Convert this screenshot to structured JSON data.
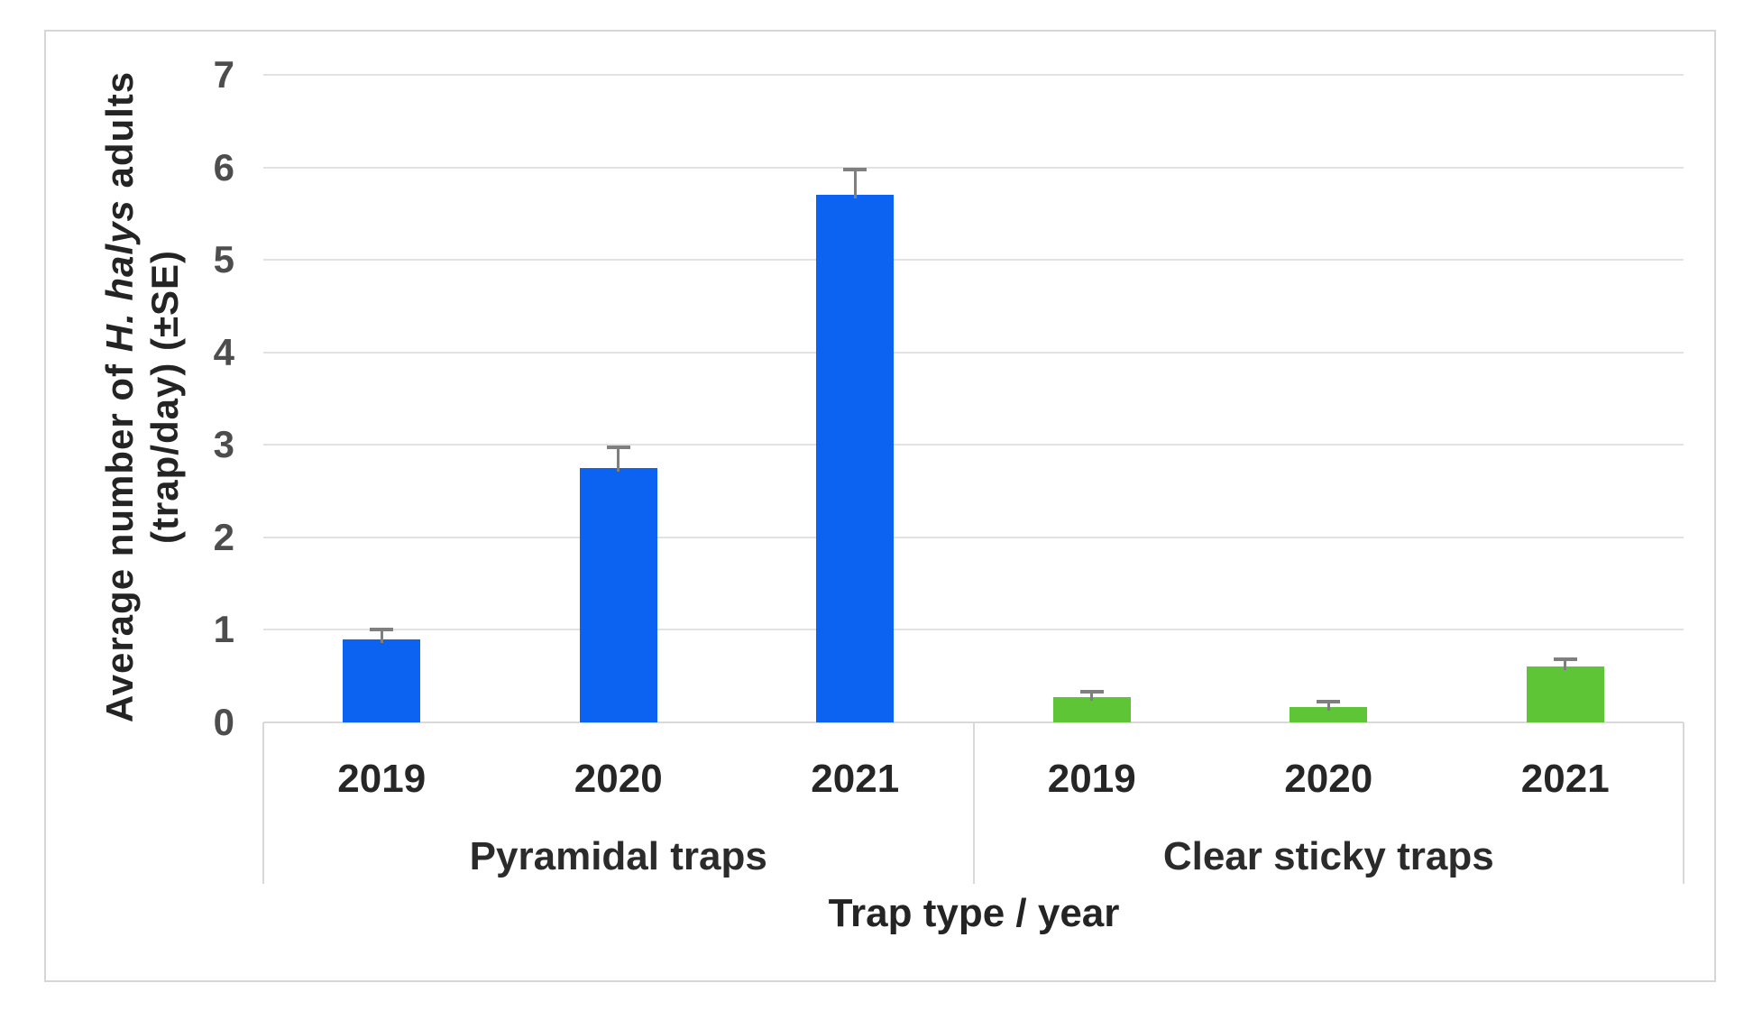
{
  "chart_data": {
    "type": "bar",
    "title": "",
    "xlabel": "Trap type / year",
    "ylabel": "Average number of H. halys adults (trap/day) (±SE)",
    "ylabel_lines": {
      "line1_prefix": "Average number of ",
      "line1_italic": "H. halys",
      "line1_suffix": " adults",
      "line2": "(trap/day) (±SE)"
    },
    "ylim": [
      0,
      7
    ],
    "yticks": [
      0,
      1,
      2,
      3,
      4,
      5,
      6,
      7
    ],
    "grid": "horizontal",
    "legend": "none",
    "error_bars": "upper +SE with cap",
    "error_bar_color": "#7f7f7f",
    "gridline_color": "#e2e2e2",
    "grouped_axis": true,
    "categories": [
      "2019",
      "2020",
      "2021"
    ],
    "series": [
      {
        "name": "Pyramidal traps",
        "color": "#0d63f1",
        "categories": [
          "2019",
          "2020",
          "2021"
        ],
        "values": [
          0.9,
          2.75,
          5.7
        ],
        "errors_se": [
          0.1,
          0.22,
          0.28
        ]
      },
      {
        "name": "Clear sticky traps",
        "color": "#5ec636",
        "categories": [
          "2019",
          "2020",
          "2021"
        ],
        "values": [
          0.27,
          0.17,
          0.6
        ],
        "errors_se": [
          0.06,
          0.05,
          0.08
        ]
      }
    ]
  }
}
